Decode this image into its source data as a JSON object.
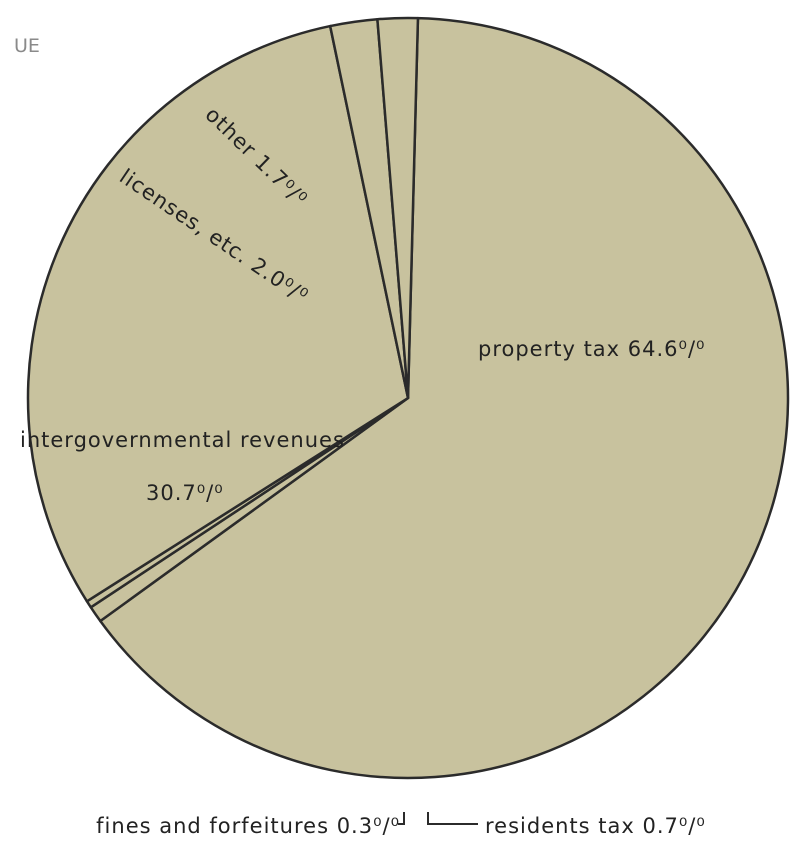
{
  "header_fragment": "UE",
  "chart_data": {
    "type": "pie",
    "title": "",
    "start_angle_deg": 1.5,
    "direction": "clockwise",
    "colors": {
      "fill": "#c8c29e",
      "stroke": "#2b2b2b"
    },
    "slices": [
      {
        "label": "property tax",
        "value": 64.6,
        "display": "64.6⁰/⁰"
      },
      {
        "label": "residents tax",
        "value": 0.7,
        "display": "0.7⁰/⁰"
      },
      {
        "label": "fines and forfeitures",
        "value": 0.3,
        "display": "0.3⁰/⁰"
      },
      {
        "label": "intergovernmental revenues",
        "value": 30.7,
        "display": "30.7⁰/⁰"
      },
      {
        "label": "licenses, etc.",
        "value": 2.0,
        "display": "2.0⁰/⁰"
      },
      {
        "label": "other",
        "value": 1.7,
        "display": "1.7⁰/⁰"
      }
    ],
    "label_texts": {
      "property_tax": "property tax 64.6⁰/⁰",
      "intergovernmental_line1": "intergovernmental revenues",
      "intergovernmental_line2": "30.7⁰/⁰",
      "licenses": "licenses, etc. 2.0⁰/⁰",
      "other": "other 1.7⁰/⁰",
      "fines": "fines and forfeitures 0.3⁰/⁰",
      "residents": "residents tax 0.7⁰/⁰"
    }
  }
}
